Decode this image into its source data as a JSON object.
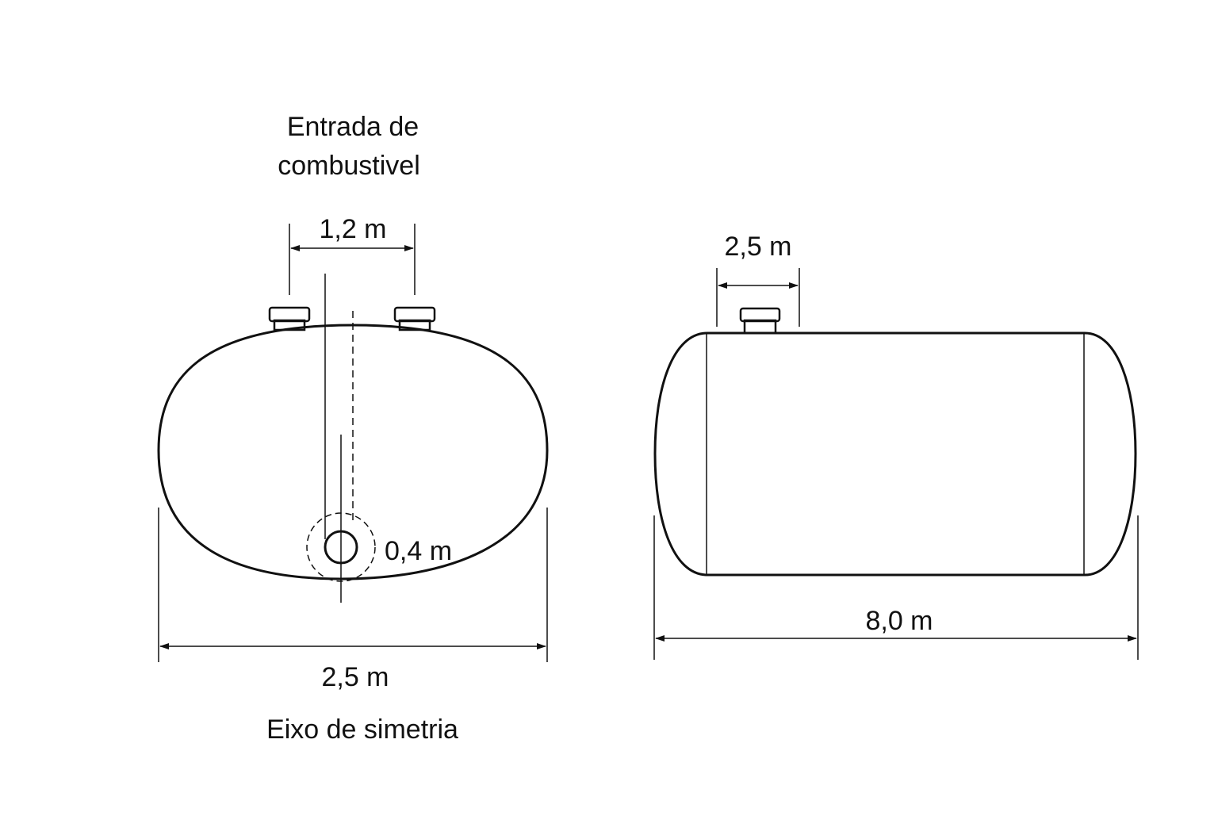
{
  "labels": {
    "fuel_inlet_line1": "Entrada de",
    "fuel_inlet_line2": "combustivel",
    "top_spacing": "1,2 m",
    "small_circle_diameter": "0,4 m",
    "front_width": "2,5 m",
    "symmetry_axis": "Eixo de simetria",
    "side_cap_offset": "2,5 m",
    "side_length": "8,0 m"
  },
  "colors": {
    "line": "#111111",
    "background": "#ffffff"
  }
}
